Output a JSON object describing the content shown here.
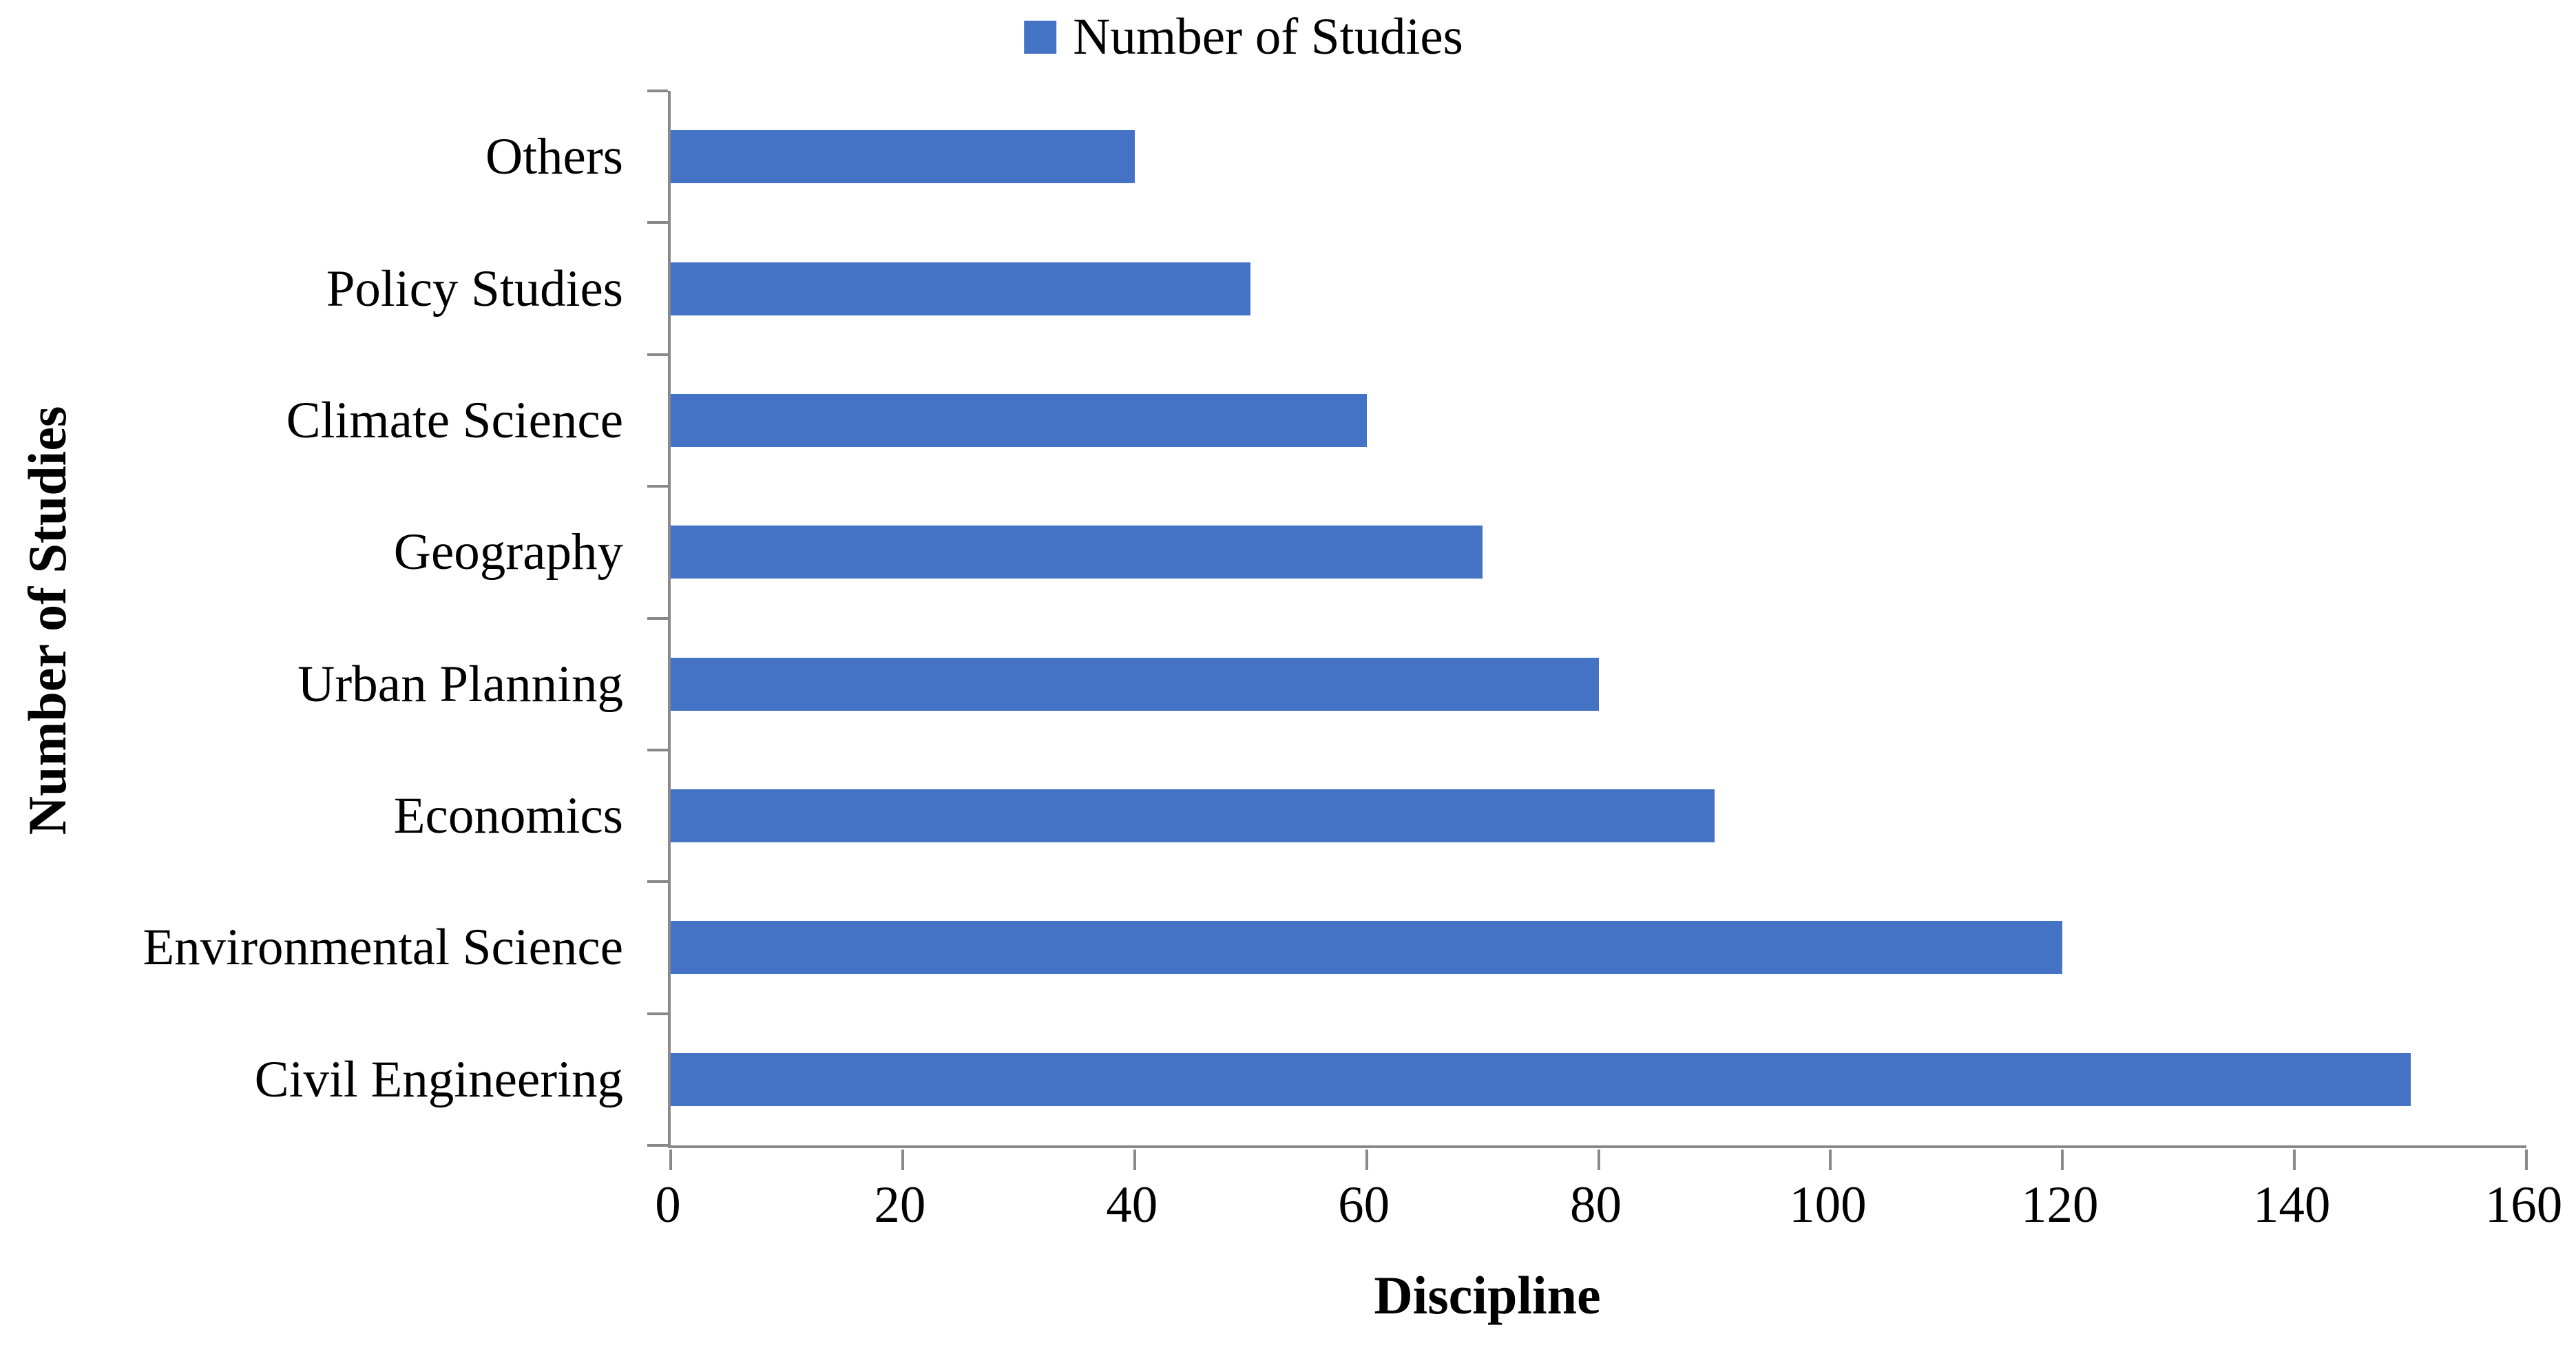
{
  "chart_data": {
    "type": "bar",
    "orientation": "horizontal",
    "legend_label": "Number of Studies",
    "legend_position": "top-center",
    "xlabel": "Discipline",
    "ylabel": "Number of Studies",
    "categories": [
      "Others",
      "Policy Studies",
      "Climate Science",
      "Geography",
      "Urban Planning",
      "Economics",
      "Environmental Science",
      "Civil Engineering"
    ],
    "values": [
      40,
      50,
      60,
      70,
      80,
      90,
      120,
      150
    ],
    "xlim": [
      0,
      160
    ],
    "x_ticks": [
      0,
      20,
      40,
      60,
      80,
      100,
      120,
      140,
      160
    ],
    "grid": false,
    "bar_color": "#4472C4",
    "axis_color": "#898989",
    "text_color": "#000000",
    "background_color": "#FFFFFF"
  }
}
